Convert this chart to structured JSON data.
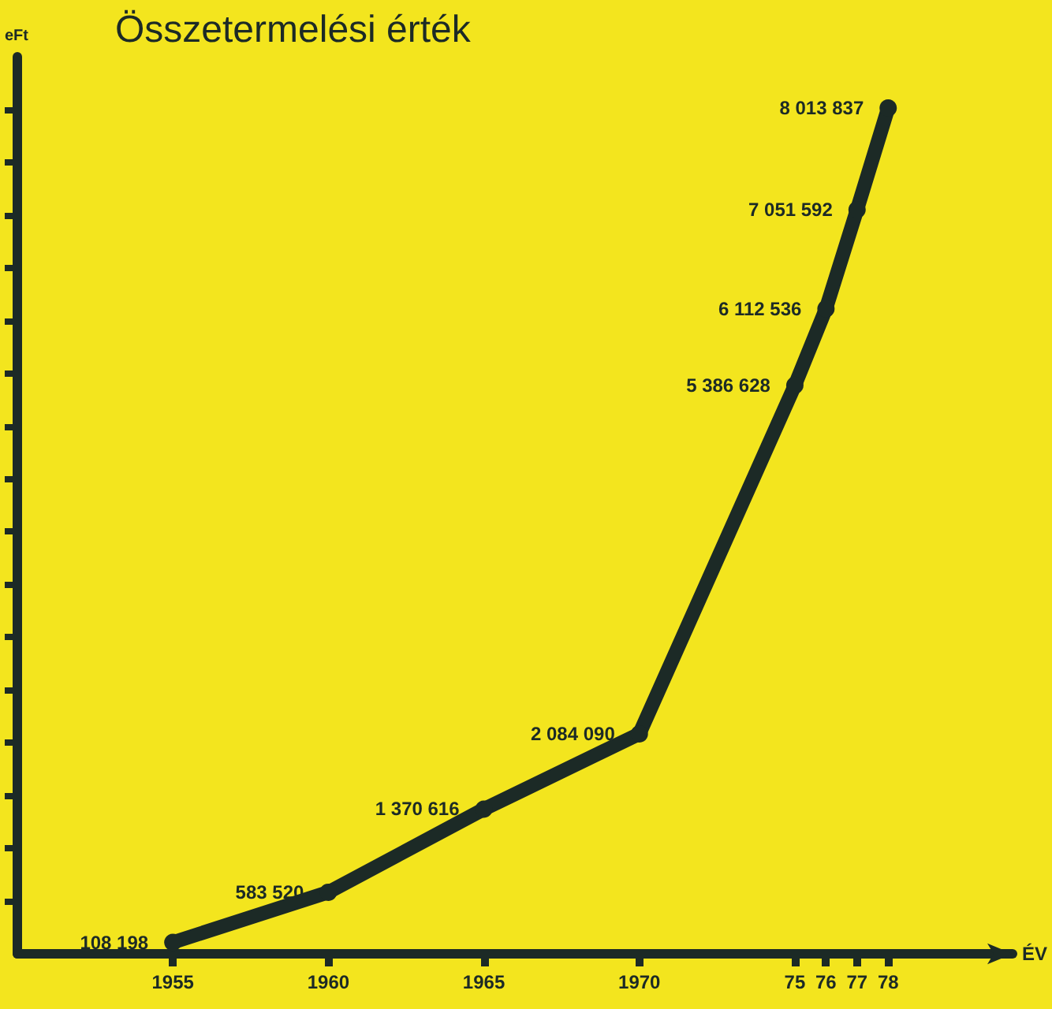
{
  "chart_data": {
    "type": "line",
    "title": "Összetermelési érték",
    "xlabel": "ÉV",
    "ylabel": "eFt",
    "x": [
      1955,
      1960,
      1965,
      1970,
      1975,
      1976,
      1977,
      1978
    ],
    "series": [
      {
        "color": "#1c2a26",
        "values": [
          108198,
          583520,
          1370616,
          2084090,
          5386628,
          6112536,
          7051592,
          8013837
        ],
        "value_labels": [
          "108 198",
          "583 520",
          "1 370 616",
          "2 084 090",
          "5 386 628",
          "6 112 536",
          "7 051 592",
          "8 013 837"
        ]
      }
    ],
    "xlim": [
      1950,
      1982
    ],
    "xticks": [
      1955,
      1960,
      1965,
      1970,
      {
        "value": 1975,
        "label": "75"
      },
      {
        "value": 1976,
        "label": "76"
      },
      {
        "value": 1977,
        "label": "77"
      },
      {
        "value": 1978,
        "label": "78"
      }
    ],
    "ylim": [
      0,
      8500000
    ],
    "yticks": [
      {
        "value": 500000,
        "label": null
      },
      {
        "value": 1000000,
        "label": null
      },
      {
        "value": 1500000,
        "label": null
      },
      {
        "value": 2000000,
        "label": null
      },
      {
        "value": 2500000,
        "label": null
      },
      {
        "value": 3000000,
        "label": null
      },
      {
        "value": 3500000,
        "label": null
      },
      {
        "value": 4000000,
        "label": null
      },
      {
        "value": 4500000,
        "label": null
      },
      {
        "value": 5000000,
        "label": null
      },
      {
        "value": 5500000,
        "label": null
      },
      {
        "value": 6000000,
        "label": null
      },
      {
        "value": 6500000,
        "label": null
      },
      {
        "value": 7000000,
        "label": null
      },
      {
        "value": 7500000,
        "label": null
      },
      {
        "value": 8000000,
        "label": null
      }
    ],
    "grid": false,
    "marker": "circle",
    "line_style": "solid"
  }
}
